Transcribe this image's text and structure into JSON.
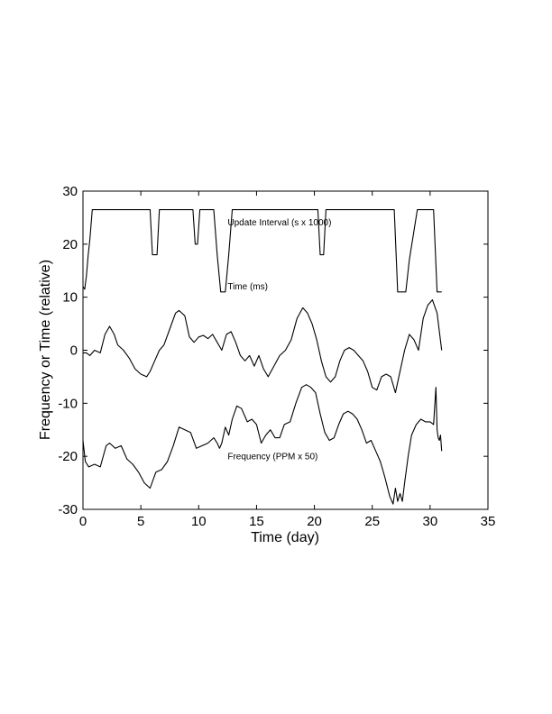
{
  "chart_data": {
    "type": "line",
    "title": "",
    "xlabel": "Time (day)",
    "ylabel": "Frequency or Time (relative)",
    "xlim": [
      0,
      35
    ],
    "ylim": [
      -30,
      30
    ],
    "xticks": [
      "0",
      "5",
      "10",
      "15",
      "20",
      "25",
      "30",
      "35"
    ],
    "yticks": [
      "30",
      "20",
      "10",
      "0",
      "-10",
      "-20",
      "-30"
    ],
    "grid": false,
    "legend": "none",
    "line_color": "#000000",
    "annotations": [
      {
        "text": "Update Interval (s x 1000)",
        "x": 12.5,
        "y": 23.5
      },
      {
        "text": "Time (ms)",
        "x": 12.5,
        "y": 11.5
      },
      {
        "text": "Frequency (PPM x 50)",
        "x": 12.5,
        "y": -20.6
      }
    ],
    "series": [
      {
        "x": [
          0,
          0.15,
          0.3,
          0.45,
          0.6,
          0.8,
          1.0,
          5.8,
          6.0,
          6.4,
          6.6,
          9.5,
          9.7,
          9.9,
          10.1,
          11.3,
          11.6,
          11.9,
          12.3,
          12.6,
          12.9,
          20.3,
          20.5,
          20.8,
          21.0,
          26.9,
          27.2,
          27.9,
          28.2,
          28.9,
          29.2,
          30.3,
          30.6,
          31.0
        ],
        "values": [
          12,
          11.5,
          14,
          18,
          21,
          26.5,
          26.5,
          26.5,
          18,
          18,
          26.5,
          26.5,
          20,
          20,
          26.5,
          26.5,
          18,
          11,
          11,
          18,
          26.5,
          26.5,
          18,
          18,
          26.5,
          26.5,
          11,
          11,
          17,
          26.5,
          26.5,
          26.5,
          11,
          11
        ]
      },
      {
        "x": [
          0,
          0.3,
          0.6,
          1.0,
          1.5,
          1.9,
          2.3,
          2.7,
          3.0,
          3.5,
          4.0,
          4.5,
          5.0,
          5.5,
          5.8,
          6.2,
          6.6,
          7.0,
          7.5,
          8.0,
          8.3,
          8.8,
          9.2,
          9.6,
          10.0,
          10.4,
          10.8,
          11.2,
          11.6,
          12.0,
          12.4,
          12.8,
          13.2,
          13.6,
          14.0,
          14.4,
          14.8,
          15.2,
          15.6,
          16.0,
          16.5,
          17.0,
          17.5,
          18.0,
          18.5,
          19.0,
          19.4,
          19.8,
          20.2,
          20.6,
          21.0,
          21.4,
          21.8,
          22.2,
          22.6,
          23.0,
          23.4,
          23.8,
          24.2,
          24.6,
          25.0,
          25.4,
          25.8,
          26.2,
          26.6,
          27.0,
          27.4,
          27.8,
          28.2,
          28.6,
          29.0,
          29.4,
          29.8,
          30.2,
          30.6,
          31.0
        ],
        "values": [
          -0.5,
          -0.5,
          -1,
          0,
          -0.5,
          3,
          4.5,
          3,
          1,
          0,
          -1.5,
          -3.5,
          -4.5,
          -5,
          -4,
          -2,
          0,
          1,
          4,
          7,
          7.5,
          6.5,
          2.5,
          1.5,
          2.5,
          2.8,
          2.2,
          3,
          1.5,
          0,
          3,
          3.5,
          1.5,
          -1,
          -2,
          -1,
          -3,
          -1,
          -3.5,
          -5,
          -3,
          -1,
          0,
          2,
          6,
          8,
          7,
          5,
          2,
          -2,
          -5,
          -6,
          -5,
          -2,
          0,
          0.5,
          0,
          -1,
          -2,
          -4,
          -7,
          -7.5,
          -5,
          -4.5,
          -5,
          -8,
          -4,
          0,
          3,
          2,
          0,
          6,
          8.5,
          9.5,
          7,
          0
        ]
      },
      {
        "x": [
          0,
          0.2,
          0.5,
          1.0,
          1.5,
          2.0,
          2.3,
          2.8,
          3.3,
          3.8,
          4.3,
          4.8,
          5.3,
          5.8,
          6.3,
          6.8,
          7.3,
          7.8,
          8.3,
          8.8,
          9.3,
          9.8,
          10.3,
          10.8,
          11.3,
          11.6,
          11.8,
          12.0,
          12.3,
          12.6,
          12.9,
          13.3,
          13.7,
          14.2,
          14.6,
          15.0,
          15.4,
          15.8,
          16.2,
          16.6,
          17.0,
          17.4,
          17.9,
          18.4,
          18.9,
          19.3,
          19.7,
          20.1,
          20.5,
          20.9,
          21.3,
          21.7,
          22.1,
          22.5,
          22.9,
          23.3,
          23.7,
          24.1,
          24.5,
          24.9,
          25.3,
          25.7,
          26.1,
          26.5,
          26.8,
          27.0,
          27.2,
          27.4,
          27.6,
          27.8,
          28.1,
          28.4,
          28.8,
          29.2,
          29.6,
          30.0,
          30.3,
          30.5,
          30.6,
          30.7,
          30.8,
          30.9,
          31.0
        ],
        "values": [
          -17,
          -21,
          -22,
          -21.5,
          -22,
          -18,
          -17.5,
          -18.5,
          -18,
          -20.5,
          -21.5,
          -23,
          -25,
          -26,
          -23,
          -22.5,
          -21,
          -18,
          -14.5,
          -15,
          -15.5,
          -18.5,
          -18,
          -17.5,
          -16.5,
          -17.5,
          -18.5,
          -17.5,
          -14.5,
          -16,
          -13,
          -10.5,
          -11,
          -13.5,
          -13,
          -14,
          -17.5,
          -16,
          -15,
          -16.5,
          -16.5,
          -14,
          -13.5,
          -10,
          -7,
          -6.5,
          -7,
          -8,
          -12,
          -15.5,
          -17,
          -16.5,
          -14,
          -12,
          -11.5,
          -12,
          -13,
          -15,
          -17.5,
          -17,
          -19,
          -21,
          -24,
          -27.5,
          -29,
          -26,
          -28.5,
          -27,
          -28.5,
          -25,
          -20,
          -16,
          -14,
          -13,
          -13.5,
          -13.5,
          -14,
          -7,
          -15,
          -16.5,
          -17,
          -16,
          -19
        ]
      }
    ]
  }
}
